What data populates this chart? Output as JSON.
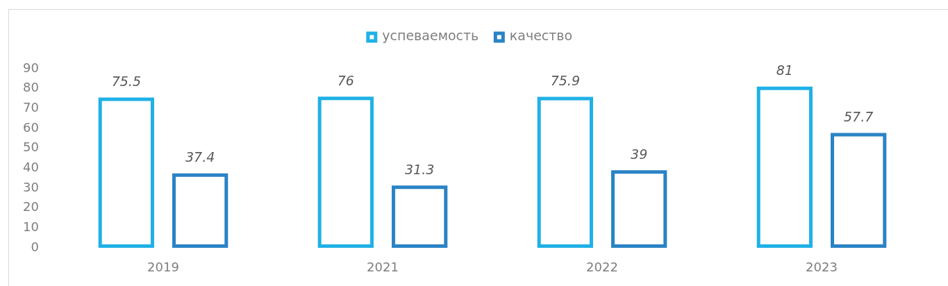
{
  "chart_data": {
    "type": "bar",
    "categories": [
      "2019",
      "2021",
      "2022",
      "2023"
    ],
    "series": [
      {
        "name": "успеваемость",
        "color": "#1fb1e6",
        "values": [
          75.5,
          76,
          75.9,
          81
        ]
      },
      {
        "name": "качество",
        "color": "#2a83c5",
        "values": [
          37.4,
          31.3,
          39,
          57.7
        ]
      }
    ],
    "ylim": [
      0,
      90
    ],
    "yticks": [
      0,
      10,
      20,
      30,
      40,
      50,
      60,
      70,
      80,
      90
    ],
    "data_labels": true,
    "legend": "top"
  }
}
